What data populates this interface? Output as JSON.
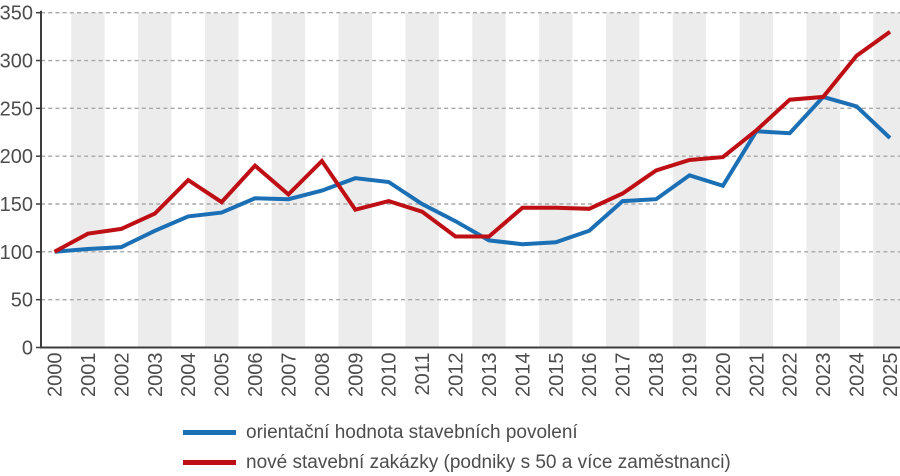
{
  "chart_data": {
    "type": "line",
    "title": "",
    "xlabel": "",
    "ylabel": "",
    "x": [
      2000,
      2001,
      2002,
      2003,
      2004,
      2005,
      2006,
      2007,
      2008,
      2009,
      2010,
      2011,
      2012,
      2013,
      2014,
      2015,
      2016,
      2017,
      2018,
      2019,
      2020,
      2021,
      2022,
      2023,
      2024,
      2025
    ],
    "series": [
      {
        "name": "orientační hodnota stavebních povolení",
        "color": "#1B6FB5",
        "values": [
          100,
          103,
          105,
          122,
          137,
          141,
          156,
          155,
          164,
          177,
          173,
          150,
          132,
          112,
          108,
          110,
          122,
          153,
          155,
          180,
          169,
          226,
          224,
          262,
          252,
          219
        ]
      },
      {
        "name": "nové stavební zakázky (podniky s 50 a více zaměstnanci)",
        "color": "#BE1014",
        "values": [
          100,
          119,
          124,
          140,
          175,
          152,
          190,
          160,
          195,
          144,
          153,
          142,
          116,
          116,
          146,
          146,
          145,
          161,
          185,
          196,
          199,
          227,
          259,
          262,
          305,
          330
        ]
      }
    ],
    "ylim": [
      0,
      350
    ],
    "yticks": [
      0,
      50,
      100,
      150,
      200,
      250,
      300,
      350
    ],
    "ytick_step": 50,
    "grid": "horizontal dashed lines at each 50",
    "background_stripes": "alternating light-gray vertical year bands centered on odd years",
    "legend_position": "bottom-left",
    "colors": {
      "grid": "#A8A8A8",
      "stripe": "#ECECEC",
      "axis": "#3C3C3C",
      "tick_text": "#4D4D4D",
      "background": "#FFFFFF"
    }
  },
  "legend": {
    "items": [
      {
        "label": "orientační hodnota stavebních povolení"
      },
      {
        "label": "nové stavební zakázky (podniky s 50 a více zaměstnanci)"
      }
    ]
  }
}
